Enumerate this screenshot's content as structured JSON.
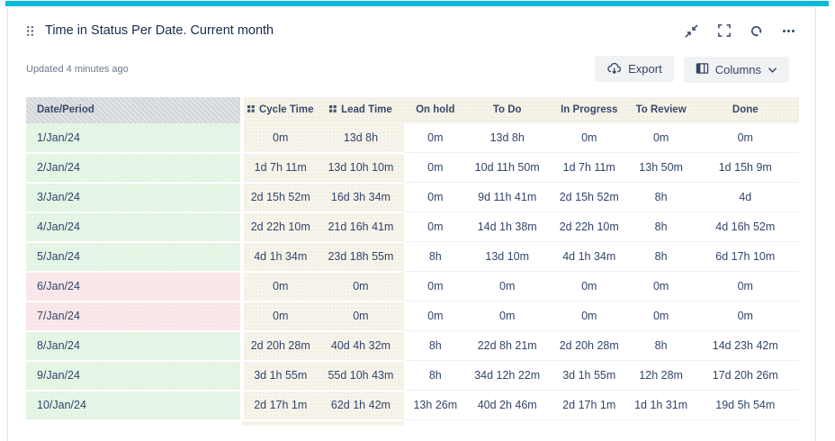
{
  "widget": {
    "title": "Time in Status Per Date. Current month",
    "updated": "Updated 4 minutes ago",
    "toolbar": {
      "export_label": "Export",
      "columns_label": "Columns"
    },
    "icons": {
      "drag_handle": "drag-handle-dots",
      "collapse": "collapse-arrows-icon",
      "fullscreen": "fullscreen-brackets-icon",
      "refresh": "refresh-sync-icon",
      "more": "ellipsis-icon",
      "export": "cloud-download-icon",
      "columns": "columns-layout-icon",
      "chevron": "chevron-down-icon",
      "column_drag": "grid-squares-icon"
    },
    "colors": {
      "accent_teal": "#00bcd9",
      "title_text": "#172b4d",
      "cell_text": "#33456b",
      "weekday_green": "#e6f6e6",
      "weekend_pink": "#fae8ea",
      "cream_column": "#f7f4eb",
      "header_gray": "#d4d7db"
    }
  },
  "table": {
    "columns": [
      "Date/Period",
      "Cycle Time",
      "Lead Time",
      "On hold",
      "To Do",
      "In Progress",
      "To Review",
      "Done"
    ],
    "rows": [
      {
        "date": "1/Jan/24",
        "type": "weekday",
        "values": [
          "0m",
          "13d 8h",
          "0m",
          "13d 8h",
          "0m",
          "0m",
          "0m"
        ]
      },
      {
        "date": "2/Jan/24",
        "type": "weekday",
        "values": [
          "1d 7h 11m",
          "13d 10h 10m",
          "0m",
          "10d 11h 50m",
          "1d 7h 11m",
          "13h 50m",
          "1d 15h 9m"
        ]
      },
      {
        "date": "3/Jan/24",
        "type": "weekday",
        "values": [
          "2d 15h 52m",
          "16d 3h 34m",
          "0m",
          "9d 11h 41m",
          "2d 15h 52m",
          "8h",
          "4d"
        ]
      },
      {
        "date": "4/Jan/24",
        "type": "weekday",
        "values": [
          "2d 22h 10m",
          "21d 16h 41m",
          "0m",
          "14d 1h 38m",
          "2d 22h 10m",
          "8h",
          "4d 16h 52m"
        ]
      },
      {
        "date": "5/Jan/24",
        "type": "weekday",
        "values": [
          "4d 1h 34m",
          "23d 18h 55m",
          "8h",
          "13d 10m",
          "4d 1h 34m",
          "8h",
          "6d 17h 10m"
        ]
      },
      {
        "date": "6/Jan/24",
        "type": "weekend",
        "values": [
          "0m",
          "0m",
          "0m",
          "0m",
          "0m",
          "0m",
          "0m"
        ]
      },
      {
        "date": "7/Jan/24",
        "type": "weekend",
        "values": [
          "0m",
          "0m",
          "0m",
          "0m",
          "0m",
          "0m",
          "0m"
        ]
      },
      {
        "date": "8/Jan/24",
        "type": "weekday",
        "values": [
          "2d 20h 28m",
          "40d 4h 32m",
          "8h",
          "22d 8h 21m",
          "2d 20h 28m",
          "8h",
          "14d 23h 42m"
        ]
      },
      {
        "date": "9/Jan/24",
        "type": "weekday",
        "values": [
          "3d 1h 55m",
          "55d 10h 43m",
          "8h",
          "34d 12h 22m",
          "3d 1h 55m",
          "12h 28m",
          "17d 20h 26m"
        ]
      },
      {
        "date": "10/Jan/24",
        "type": "weekday",
        "values": [
          "2d 17h 1m",
          "62d 1h 42m",
          "13h 26m",
          "40d 2h 46m",
          "2d 17h 1m",
          "1d 1h 31m",
          "19d 5h 54m"
        ]
      }
    ]
  }
}
